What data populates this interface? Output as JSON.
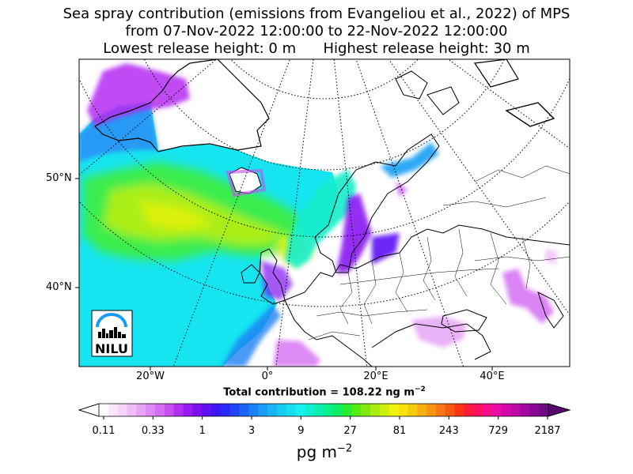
{
  "title": {
    "line1": "Sea spray contribution (emissions from Evangeliou et al., 2022) of MPS",
    "line2": "from 07-Nov-2022 12:00:00 to 22-Nov-2022 12:00:00",
    "line3": "Lowest release height: 0 m      Highest release height: 30 m"
  },
  "axes": {
    "lat_labels": [
      "50°N",
      "40°N"
    ],
    "lon_labels": [
      "20°W",
      "0°",
      "20°E",
      "40°E"
    ]
  },
  "total": {
    "prefix": "Total contribution = 108.22 ng m",
    "sup": "−2"
  },
  "colorbar": {
    "ticks": [
      "0.11",
      "0.33",
      "1",
      "3",
      "9",
      "27",
      "81",
      "243",
      "729",
      "2187"
    ],
    "unit": "pg m",
    "unit_sup": "−2",
    "colors": [
      "#ffffff",
      "#fbe6fb",
      "#f6d3f8",
      "#efbdf6",
      "#e6a4f5",
      "#de8af3",
      "#d46ef3",
      "#c54ff2",
      "#b22ff2",
      "#9a1af2",
      "#7d10f2",
      "#5d12f4",
      "#3d16f6",
      "#2a2af8",
      "#1f45f8",
      "#1a63f7",
      "#1a80f6",
      "#1a9bf6",
      "#18b4f4",
      "#16cbf1",
      "#16def0",
      "#16f0ee",
      "#10f0d0",
      "#0cefae",
      "#0aef8a",
      "#0fee62",
      "#28ec30",
      "#55ea14",
      "#80ea10",
      "#a8ec10",
      "#ceef0e",
      "#eef20c",
      "#f8e40c",
      "#f8cc0e",
      "#f8b010",
      "#f89412",
      "#f87614",
      "#f85614",
      "#fa3414",
      "#fc1a3a",
      "#fc1060",
      "#f80e88",
      "#ea0ca4",
      "#d40aa8",
      "#bc0aa6",
      "#a008a0",
      "#880894",
      "#6e0a84"
    ]
  },
  "logo": {
    "text": "NILU"
  }
}
